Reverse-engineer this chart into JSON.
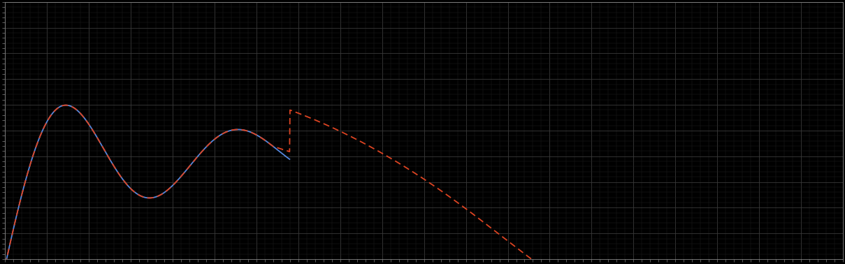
{
  "background_color": "#000000",
  "plot_bg_color": "#000000",
  "line1_color": "#5588dd",
  "line2_color": "#dd4422",
  "figsize": [
    12.09,
    3.78
  ],
  "dpi": 100,
  "ylim": [
    0,
    10
  ],
  "xlim": [
    0,
    100
  ],
  "tick_color": "#888888",
  "spine_color": "#888888",
  "grid_major_color": "#3a3a3a",
  "grid_minor_color": "#222222"
}
